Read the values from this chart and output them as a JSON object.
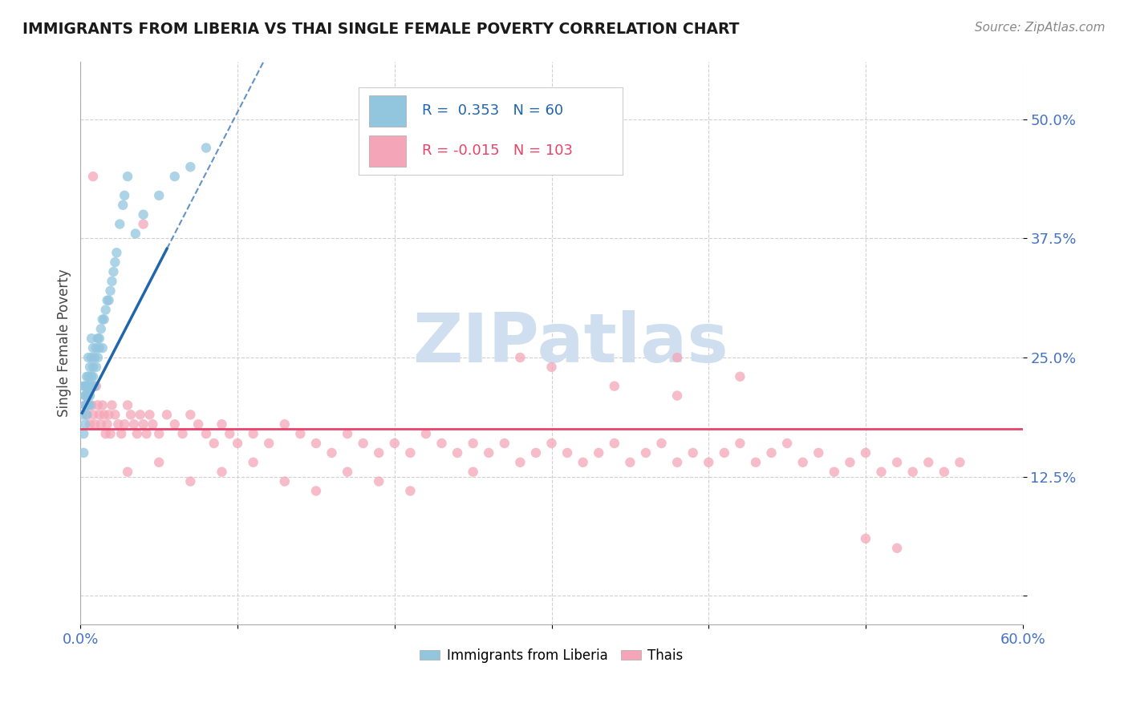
{
  "title": "IMMIGRANTS FROM LIBERIA VS THAI SINGLE FEMALE POVERTY CORRELATION CHART",
  "source": "Source: ZipAtlas.com",
  "ylabel": "Single Female Poverty",
  "yticks": [
    0.0,
    0.125,
    0.25,
    0.375,
    0.5
  ],
  "ytick_labels": [
    "",
    "12.5%",
    "25.0%",
    "37.5%",
    "50.0%"
  ],
  "xlim": [
    0.0,
    0.6
  ],
  "ylim": [
    -0.03,
    0.56
  ],
  "r_liberia": 0.353,
  "n_liberia": 60,
  "r_thai": -0.015,
  "n_thai": 103,
  "color_liberia": "#92c5de",
  "color_thai": "#f4a6b8",
  "trendline_liberia_color": "#2166ac",
  "trendline_thai_color": "#e8436a",
  "watermark_color": "#d0dff0",
  "background_color": "#ffffff",
  "liberia_x": [
    0.001,
    0.002,
    0.002,
    0.002,
    0.003,
    0.003,
    0.003,
    0.003,
    0.003,
    0.004,
    0.004,
    0.004,
    0.004,
    0.004,
    0.005,
    0.005,
    0.005,
    0.005,
    0.005,
    0.006,
    0.006,
    0.006,
    0.006,
    0.007,
    0.007,
    0.007,
    0.007,
    0.008,
    0.008,
    0.008,
    0.009,
    0.009,
    0.01,
    0.01,
    0.011,
    0.011,
    0.012,
    0.012,
    0.013,
    0.014,
    0.014,
    0.015,
    0.016,
    0.017,
    0.018,
    0.019,
    0.02,
    0.021,
    0.022,
    0.023,
    0.025,
    0.027,
    0.028,
    0.03,
    0.035,
    0.04,
    0.05,
    0.06,
    0.07,
    0.08
  ],
  "liberia_y": [
    0.19,
    0.17,
    0.22,
    0.15,
    0.21,
    0.2,
    0.18,
    0.22,
    0.21,
    0.21,
    0.2,
    0.22,
    0.19,
    0.23,
    0.22,
    0.21,
    0.2,
    0.23,
    0.25,
    0.22,
    0.2,
    0.24,
    0.21,
    0.23,
    0.22,
    0.25,
    0.27,
    0.24,
    0.23,
    0.26,
    0.25,
    0.22,
    0.26,
    0.24,
    0.27,
    0.25,
    0.27,
    0.26,
    0.28,
    0.29,
    0.26,
    0.29,
    0.3,
    0.31,
    0.31,
    0.32,
    0.33,
    0.34,
    0.35,
    0.36,
    0.39,
    0.41,
    0.42,
    0.44,
    0.38,
    0.4,
    0.42,
    0.44,
    0.45,
    0.47
  ],
  "thai_x": [
    0.003,
    0.004,
    0.005,
    0.006,
    0.007,
    0.008,
    0.009,
    0.01,
    0.011,
    0.012,
    0.013,
    0.014,
    0.015,
    0.016,
    0.017,
    0.018,
    0.019,
    0.02,
    0.022,
    0.024,
    0.026,
    0.028,
    0.03,
    0.032,
    0.034,
    0.036,
    0.038,
    0.04,
    0.042,
    0.044,
    0.046,
    0.05,
    0.055,
    0.06,
    0.065,
    0.07,
    0.075,
    0.08,
    0.085,
    0.09,
    0.095,
    0.1,
    0.11,
    0.12,
    0.13,
    0.14,
    0.15,
    0.16,
    0.17,
    0.18,
    0.19,
    0.2,
    0.21,
    0.22,
    0.23,
    0.24,
    0.25,
    0.26,
    0.27,
    0.28,
    0.29,
    0.3,
    0.31,
    0.32,
    0.33,
    0.34,
    0.35,
    0.36,
    0.37,
    0.38,
    0.39,
    0.4,
    0.41,
    0.42,
    0.43,
    0.44,
    0.45,
    0.46,
    0.47,
    0.48,
    0.49,
    0.5,
    0.51,
    0.52,
    0.53,
    0.54,
    0.55,
    0.56,
    0.03,
    0.05,
    0.07,
    0.09,
    0.11,
    0.13,
    0.15,
    0.17,
    0.19,
    0.21,
    0.25,
    0.3,
    0.34,
    0.38,
    0.42
  ],
  "thai_y": [
    0.2,
    0.19,
    0.21,
    0.18,
    0.2,
    0.19,
    0.18,
    0.22,
    0.2,
    0.19,
    0.18,
    0.2,
    0.19,
    0.17,
    0.18,
    0.19,
    0.17,
    0.2,
    0.19,
    0.18,
    0.17,
    0.18,
    0.2,
    0.19,
    0.18,
    0.17,
    0.19,
    0.18,
    0.17,
    0.19,
    0.18,
    0.17,
    0.19,
    0.18,
    0.17,
    0.19,
    0.18,
    0.17,
    0.16,
    0.18,
    0.17,
    0.16,
    0.17,
    0.16,
    0.18,
    0.17,
    0.16,
    0.15,
    0.17,
    0.16,
    0.15,
    0.16,
    0.15,
    0.17,
    0.16,
    0.15,
    0.16,
    0.15,
    0.16,
    0.14,
    0.15,
    0.16,
    0.15,
    0.14,
    0.15,
    0.16,
    0.14,
    0.15,
    0.16,
    0.14,
    0.15,
    0.14,
    0.15,
    0.16,
    0.14,
    0.15,
    0.16,
    0.14,
    0.15,
    0.13,
    0.14,
    0.15,
    0.13,
    0.14,
    0.13,
    0.14,
    0.13,
    0.14,
    0.13,
    0.14,
    0.12,
    0.13,
    0.14,
    0.12,
    0.11,
    0.13,
    0.12,
    0.11,
    0.13,
    0.24,
    0.22,
    0.21,
    0.23
  ],
  "thai_outliers_x": [
    0.008,
    0.04,
    0.28,
    0.38,
    0.5,
    0.52
  ],
  "thai_outliers_y": [
    0.44,
    0.39,
    0.25,
    0.25,
    0.06,
    0.05
  ]
}
